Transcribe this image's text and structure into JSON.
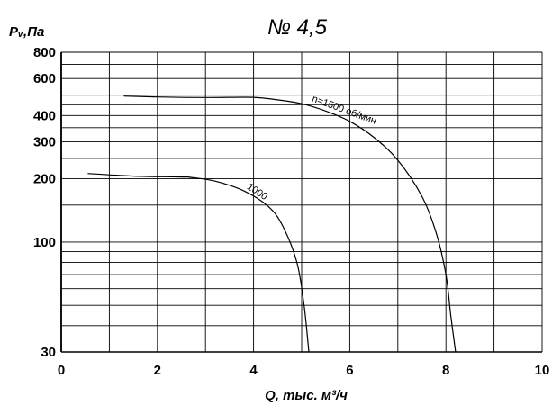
{
  "chart_data": {
    "type": "line",
    "title": "№ 4,5",
    "xlabel": "Q, тыс. м³/ч",
    "ylabel": "Pᵥ,Па",
    "x_scale": "linear",
    "y_scale": "log",
    "xlim": [
      0,
      10
    ],
    "ylim": [
      30,
      800
    ],
    "x_ticks": [
      "0",
      "2",
      "4",
      "6",
      "8",
      "10"
    ],
    "y_ticks": [
      "30",
      "100",
      "200",
      "300",
      "400",
      "600",
      "800"
    ],
    "grid": true,
    "series": [
      {
        "name": "n=1500 об/мин",
        "points": [
          [
            1.3,
            495
          ],
          [
            2.0,
            490
          ],
          [
            3.0,
            487
          ],
          [
            4.0,
            488
          ],
          [
            4.5,
            475
          ],
          [
            5.0,
            455
          ],
          [
            5.5,
            420
          ],
          [
            6.0,
            375
          ],
          [
            6.5,
            315
          ],
          [
            7.0,
            245
          ],
          [
            7.5,
            165
          ],
          [
            7.8,
            110
          ],
          [
            8.0,
            70
          ],
          [
            8.1,
            45
          ],
          [
            8.2,
            30
          ]
        ]
      },
      {
        "name": "1000",
        "points": [
          [
            0.55,
            212
          ],
          [
            1.5,
            206
          ],
          [
            2.5,
            204
          ],
          [
            2.7,
            203
          ],
          [
            3.2,
            195
          ],
          [
            3.8,
            175
          ],
          [
            4.3,
            148
          ],
          [
            4.6,
            120
          ],
          [
            4.9,
            80
          ],
          [
            5.05,
            50
          ],
          [
            5.15,
            30
          ]
        ]
      }
    ]
  }
}
